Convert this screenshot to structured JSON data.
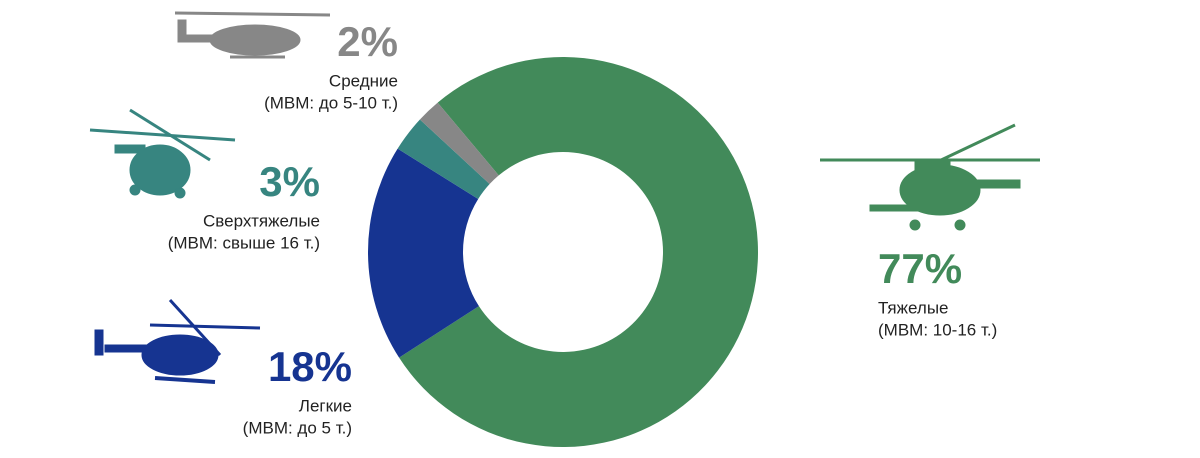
{
  "chart_data": {
    "type": "donut",
    "categories": [
      "Тяжелые",
      "Легкие",
      "Сверхтяжелые",
      "Средние"
    ],
    "sublabels": [
      "(МВМ: 10-16 т.)",
      "(МВМ: до 5 т.)",
      "(МВМ: свыше 16 т.)",
      "(МВМ: до 5-10 т.)"
    ],
    "values": [
      77,
      18,
      3,
      2
    ],
    "value_labels": [
      "77%",
      "18%",
      "3%",
      "2%"
    ],
    "colors": [
      "#428a5a",
      "#163491",
      "#378580",
      "#878787"
    ]
  }
}
